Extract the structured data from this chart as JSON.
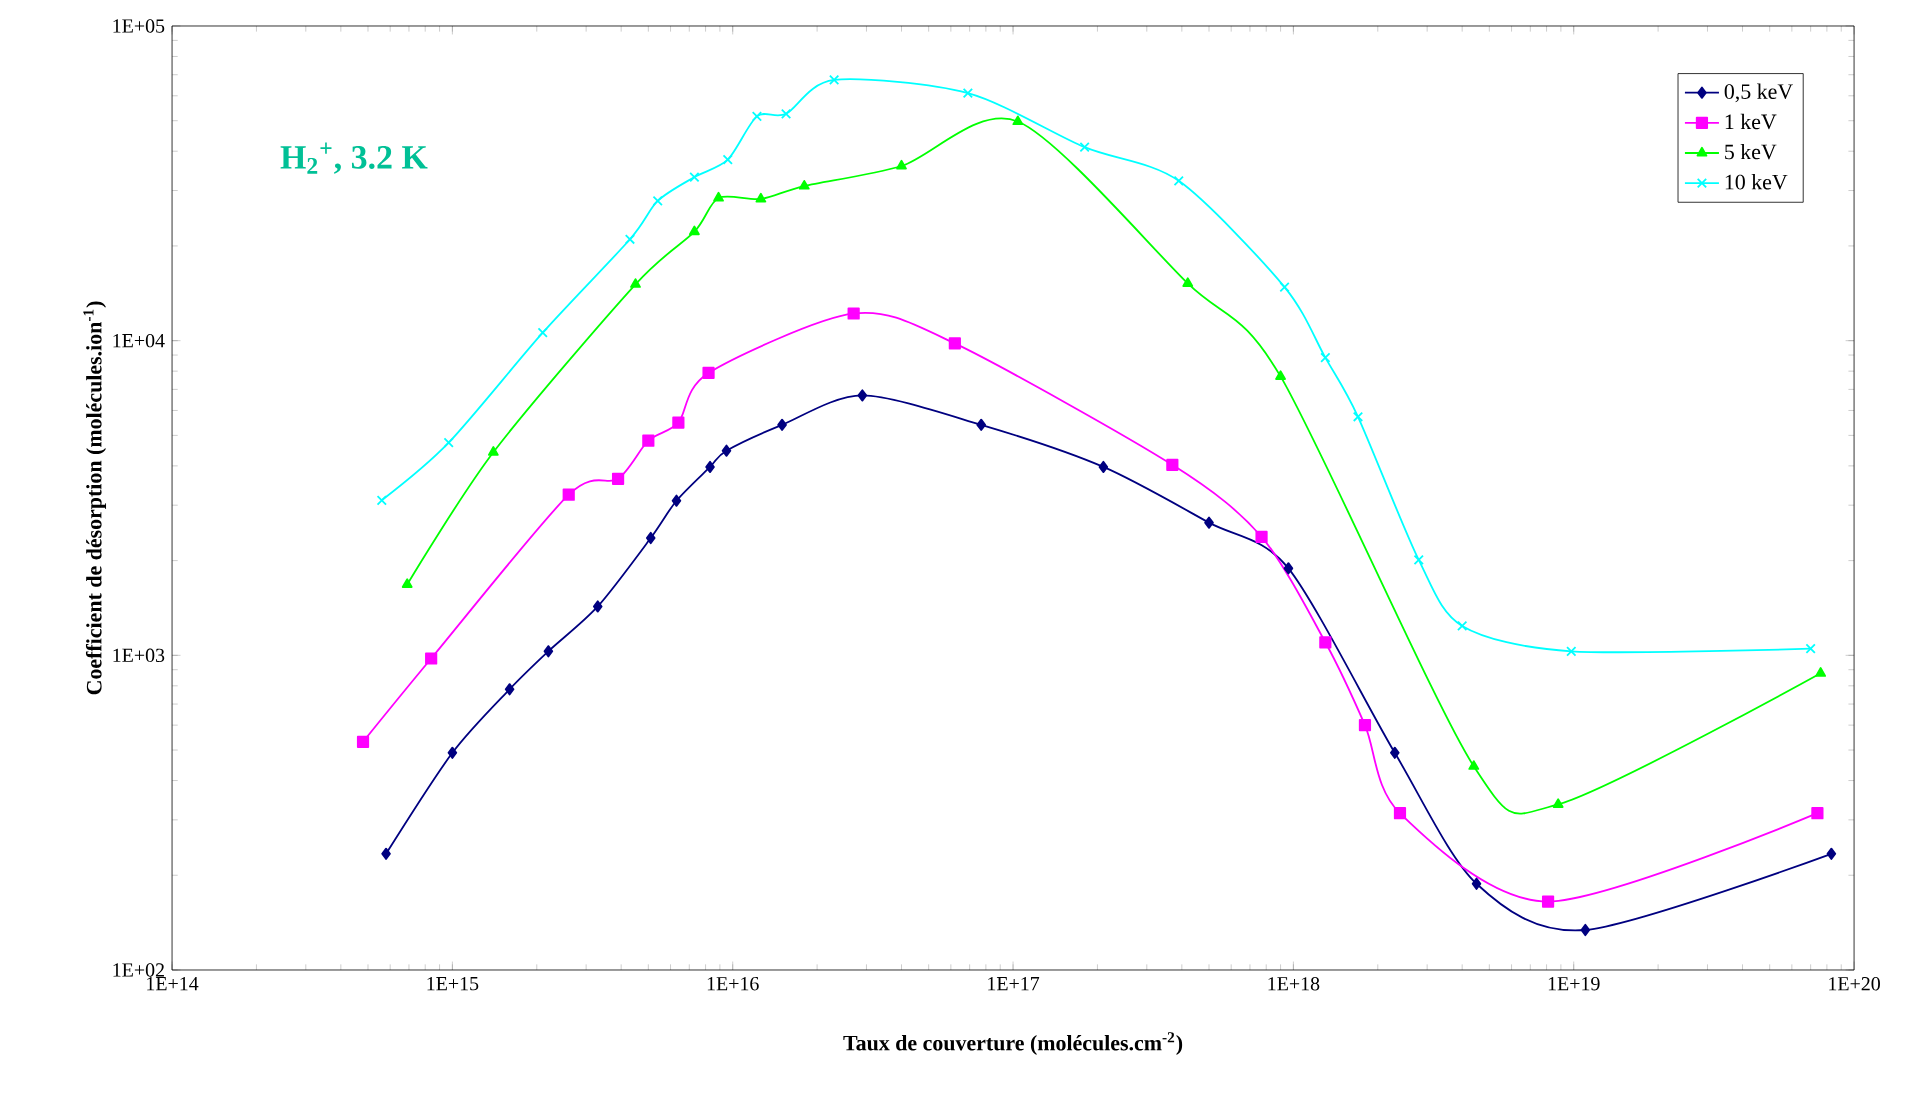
{
  "chart_data": {
    "type": "line",
    "xlabel": "Taux de couverture (molécules.cm$^{-2}$)",
    "ylabel": "Coefficient de désorption (molécules.ion$^{-1}$)",
    "annotations": [
      "H$_{2}$$^{+}$, 3.2 K"
    ],
    "log": "xy",
    "grid": false,
    "legend": "top right",
    "line_style": "solid",
    "xlim": [
      100000000000000.0,
      1e+20
    ],
    "ylim": [
      100,
      100000
    ],
    "xticks": [
      {
        "value": 100000000000000.0,
        "label": "1E+14"
      },
      {
        "value": 1000000000000000.0,
        "label": "1E+15"
      },
      {
        "value": 1e+16,
        "label": "1E+16"
      },
      {
        "value": 1e+17,
        "label": "1E+17"
      },
      {
        "value": 1e+18,
        "label": "1E+18"
      },
      {
        "value": 1e+19,
        "label": "1E+19"
      },
      {
        "value": 1e+20,
        "label": "1E+20"
      }
    ],
    "yticks": [
      {
        "value": 100,
        "label": "1E+02"
      },
      {
        "value": 1000,
        "label": "1E+03"
      },
      {
        "value": 10000,
        "label": "1E+04"
      },
      {
        "value": 100000,
        "label": "1E+05"
      }
    ],
    "series": [
      {
        "name": "0,5 keV",
        "color": "#000080",
        "marker": "diamond",
        "x": [
          580000000000000.0,
          1000000000000000.0,
          1600000000000000.0,
          2200000000000000.0,
          3300000000000000.0,
          5100000000000000.0,
          6300000000000000.0,
          8300000000000000.0,
          9500000000000000.0,
          1.5e+16,
          2.9e+16,
          7.7e+16,
          2.1e+17,
          5e+17,
          9.6e+17,
          2.3e+18,
          4.5e+18,
          1.1e+19,
          8.3e+19
        ],
        "values": [
          234,
          490,
          780,
          1030,
          1430,
          2360,
          3100,
          3970,
          4470,
          5400,
          6700,
          5400,
          3970,
          2640,
          1890,
          490,
          188,
          134,
          234
        ]
      },
      {
        "name": "1 keV",
        "color": "#ff00ff",
        "marker": "square",
        "x": [
          480000000000000.0,
          840000000000000.0,
          2600000000000000.0,
          3900000000000000.0,
          5000000000000000.0,
          6400000000000000.0,
          8200000000000000.0,
          2.7e+16,
          6.2e+16,
          3.7e+17,
          7.7e+17,
          1.3e+18,
          1.8e+18,
          2.4e+18,
          8.1e+18,
          7.4e+19
        ],
        "values": [
          531,
          977,
          3240,
          3640,
          4810,
          5490,
          7900,
          12200,
          9800,
          4030,
          2380,
          1100,
          600,
          315,
          165,
          315
        ]
      },
      {
        "name": "5 keV",
        "color": "#00ff00",
        "marker": "triangle",
        "x": [
          690000000000000.0,
          1400000000000000.0,
          4500000000000000.0,
          7300000000000000.0,
          8900000000000000.0,
          1.26e+16,
          1.8e+16,
          4e+16,
          1.04e+17,
          4.2e+17,
          9e+17,
          4.4e+18,
          8.8e+18,
          7.6e+19
        ],
        "values": [
          1680,
          4420,
          15100,
          22200,
          28400,
          28200,
          31000,
          35900,
          49700,
          15200,
          7700,
          444,
          336,
          877
        ]
      },
      {
        "name": "10 keV",
        "color": "#00ffff",
        "marker": "cross",
        "x": [
          560000000000000.0,
          970000000000000.0,
          2100000000000000.0,
          4300000000000000.0,
          5400000000000000.0,
          7300000000000000.0,
          9600000000000000.0,
          1.22e+16,
          1.55e+16,
          2.3e+16,
          6.9e+16,
          1.8e+17,
          3.9e+17,
          9.3e+17,
          1.3e+18,
          1.7e+18,
          2.8e+18,
          4e+18,
          9.8e+18,
          7e+19
        ],
        "values": [
          3110,
          4740,
          10600,
          21000,
          27800,
          33100,
          37600,
          51600,
          52600,
          67400,
          61200,
          41200,
          32200,
          14800,
          8830,
          5730,
          2010,
          1240,
          1030,
          1050
        ]
      }
    ]
  }
}
